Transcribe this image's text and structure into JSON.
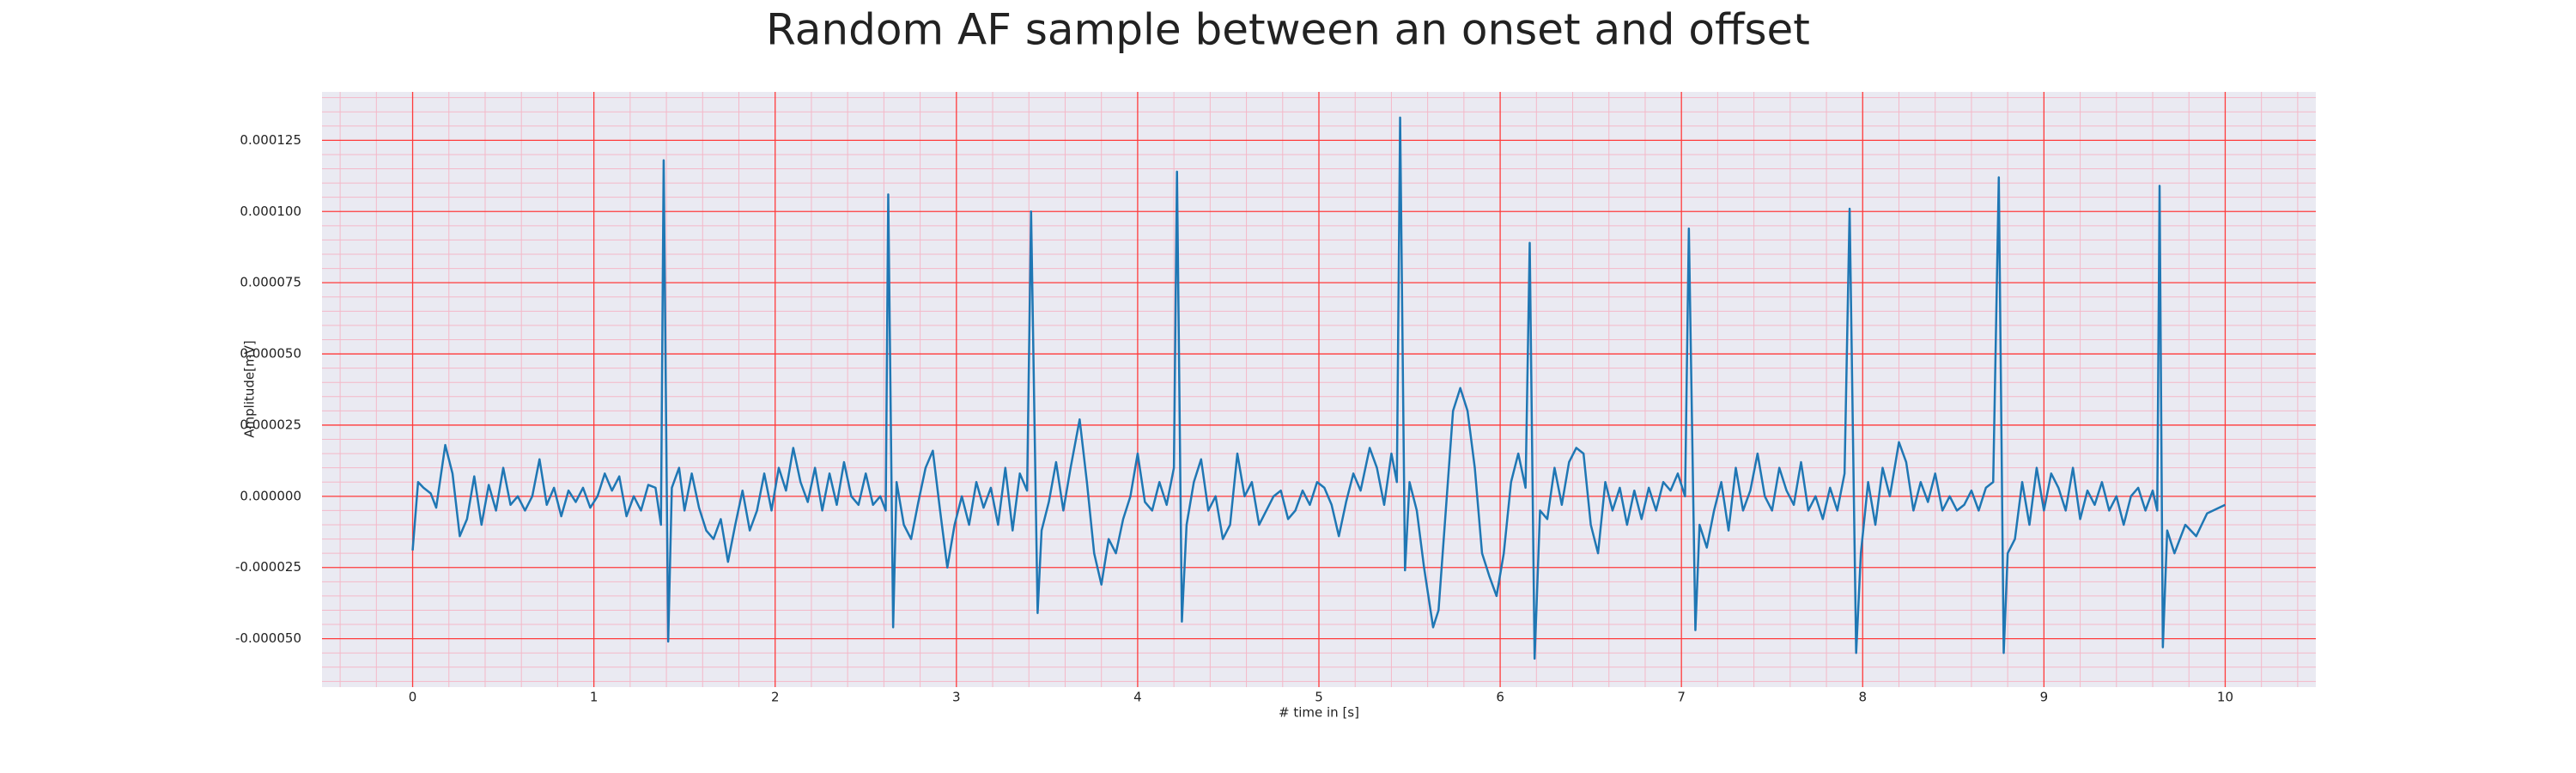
{
  "chart_data": {
    "type": "line",
    "title": "Random AF sample between an onset and offset",
    "xlabel": "# time in [s]",
    "ylabel": "Amplitude[mV]",
    "xlim": [
      -0.5,
      10.5
    ],
    "xticks": [
      0,
      1,
      2,
      3,
      4,
      5,
      6,
      7,
      8,
      9,
      10
    ],
    "ylim": [
      -6.7e-05,
      0.000142
    ],
    "yticks": [
      {
        "value": -5e-05,
        "label": "-0.000050"
      },
      {
        "value": -2.5e-05,
        "label": "-0.000025"
      },
      {
        "value": 0,
        "label": "0.000000"
      },
      {
        "value": 2.5e-05,
        "label": "0.000025"
      },
      {
        "value": 5e-05,
        "label": "0.000050"
      },
      {
        "value": 7.5e-05,
        "label": "0.000075"
      },
      {
        "value": 0.0001,
        "label": "0.000100"
      },
      {
        "value": 0.000125,
        "label": "0.000125"
      }
    ],
    "grid": true,
    "grid_color": "#ff3b3b",
    "minor_grid": true,
    "minor_divisions": 5,
    "minor_grid_color": "#f4b8c8",
    "background": "#eaeaf2",
    "x": [
      0,
      0.03,
      0.06,
      0.1,
      0.13,
      0.18,
      0.22,
      0.26,
      0.3,
      0.34,
      0.38,
      0.42,
      0.46,
      0.5,
      0.54,
      0.58,
      0.62,
      0.66,
      0.7,
      0.74,
      0.78,
      0.82,
      0.86,
      0.9,
      0.94,
      0.98,
      1.02,
      1.06,
      1.1,
      1.14,
      1.18,
      1.22,
      1.26,
      1.3,
      1.34,
      1.37,
      1.385,
      1.41,
      1.43,
      1.47,
      1.5,
      1.54,
      1.58,
      1.62,
      1.66,
      1.7,
      1.74,
      1.78,
      1.82,
      1.86,
      1.9,
      1.94,
      1.98,
      2.02,
      2.06,
      2.1,
      2.14,
      2.18,
      2.22,
      2.26,
      2.3,
      2.34,
      2.38,
      2.42,
      2.46,
      2.5,
      2.54,
      2.58,
      2.61,
      2.624,
      2.651,
      2.67,
      2.71,
      2.75,
      2.79,
      2.83,
      2.87,
      2.91,
      2.95,
      2.99,
      3.03,
      3.07,
      3.11,
      3.15,
      3.19,
      3.23,
      3.27,
      3.31,
      3.35,
      3.39,
      3.412,
      3.448,
      3.47,
      3.51,
      3.55,
      3.59,
      3.63,
      3.68,
      3.72,
      3.76,
      3.8,
      3.84,
      3.88,
      3.92,
      3.96,
      4.0,
      4.04,
      4.08,
      4.12,
      4.16,
      4.2,
      4.217,
      4.244,
      4.27,
      4.31,
      4.35,
      4.39,
      4.43,
      4.47,
      4.51,
      4.55,
      4.59,
      4.63,
      4.67,
      4.71,
      4.75,
      4.79,
      4.83,
      4.87,
      4.91,
      4.95,
      4.99,
      5.03,
      5.07,
      5.11,
      5.15,
      5.19,
      5.23,
      5.28,
      5.32,
      5.36,
      5.4,
      5.43,
      5.448,
      5.475,
      5.5,
      5.54,
      5.58,
      5.63,
      5.66,
      5.7,
      5.74,
      5.78,
      5.82,
      5.86,
      5.9,
      5.94,
      5.98,
      6.02,
      6.06,
      6.1,
      6.14,
      6.163,
      6.19,
      6.22,
      6.26,
      6.3,
      6.34,
      6.38,
      6.42,
      6.46,
      6.5,
      6.54,
      6.58,
      6.62,
      6.66,
      6.7,
      6.74,
      6.78,
      6.82,
      6.86,
      6.9,
      6.94,
      6.98,
      7.02,
      7.041,
      7.077,
      7.1,
      7.14,
      7.18,
      7.22,
      7.26,
      7.3,
      7.34,
      7.38,
      7.42,
      7.46,
      7.5,
      7.54,
      7.58,
      7.62,
      7.66,
      7.7,
      7.74,
      7.78,
      7.82,
      7.86,
      7.9,
      7.928,
      7.964,
      7.99,
      8.03,
      8.07,
      8.11,
      8.15,
      8.2,
      8.24,
      8.28,
      8.32,
      8.36,
      8.4,
      8.44,
      8.48,
      8.52,
      8.56,
      8.6,
      8.64,
      8.68,
      8.72,
      8.751,
      8.778,
      8.8,
      8.84,
      8.88,
      8.92,
      8.96,
      9.0,
      9.04,
      9.08,
      9.12,
      9.16,
      9.2,
      9.24,
      9.28,
      9.32,
      9.36,
      9.4,
      9.44,
      9.48,
      9.52,
      9.56,
      9.6,
      9.625,
      9.638,
      9.656,
      9.68,
      9.72,
      9.78,
      9.84,
      9.9,
      10
    ],
    "series": [
      {
        "color": "#1f77b4",
        "values": [
          -1.9e-05,
          5e-06,
          3e-06,
          1e-06,
          -4e-06,
          1.8e-05,
          8e-06,
          -1.4e-05,
          -8e-06,
          7e-06,
          -1e-05,
          4e-06,
          -5e-06,
          1e-05,
          -3e-06,
          0,
          -5e-06,
          0,
          1.3e-05,
          -3e-06,
          3e-06,
          -7e-06,
          2e-06,
          -2e-06,
          3e-06,
          -4e-06,
          0,
          8e-06,
          2e-06,
          7e-06,
          -7e-06,
          0,
          -5e-06,
          4e-06,
          3e-06,
          -1e-05,
          0.000118,
          -5.1e-05,
          3e-06,
          1e-05,
          -5e-06,
          8e-06,
          -4e-06,
          -1.2e-05,
          -1.5e-05,
          -8e-06,
          -2.3e-05,
          -1e-05,
          2e-06,
          -1.2e-05,
          -5e-06,
          8e-06,
          -5e-06,
          1e-05,
          2e-06,
          1.7e-05,
          5e-06,
          -2e-06,
          1e-05,
          -5e-06,
          8e-06,
          -3e-06,
          1.2e-05,
          0,
          -3e-06,
          8e-06,
          -3e-06,
          0,
          -5e-06,
          0.000106,
          -4.6e-05,
          5e-06,
          -1e-05,
          -1.5e-05,
          -2e-06,
          1e-05,
          1.6e-05,
          -5e-06,
          -2.5e-05,
          -1e-05,
          0,
          -1e-05,
          5e-06,
          -4e-06,
          3e-06,
          -1e-05,
          1e-05,
          -1.2e-05,
          8e-06,
          2e-06,
          0.0001,
          -4.1e-05,
          -1.2e-05,
          -2e-06,
          1.2e-05,
          -5e-06,
          1e-05,
          2.7e-05,
          5e-06,
          -2e-05,
          -3.1e-05,
          -1.5e-05,
          -2e-05,
          -8e-06,
          0,
          1.5e-05,
          -2e-06,
          -5e-06,
          5e-06,
          -3e-06,
          1e-05,
          0.000114,
          -4.4e-05,
          -1e-05,
          5e-06,
          1.3e-05,
          -5e-06,
          0,
          -1.5e-05,
          -1e-05,
          1.5e-05,
          0,
          5e-06,
          -1e-05,
          -5e-06,
          0,
          2e-06,
          -8e-06,
          -5e-06,
          2e-06,
          -3e-06,
          5e-06,
          3e-06,
          -3e-06,
          -1.4e-05,
          -2e-06,
          8e-06,
          2e-06,
          1.7e-05,
          1e-05,
          -3e-06,
          1.5e-05,
          5e-06,
          0.000133,
          -2.6e-05,
          5e-06,
          -5e-06,
          -2.5e-05,
          -4.6e-05,
          -4e-05,
          -5e-06,
          3e-05,
          3.8e-05,
          3e-05,
          1e-05,
          -2e-05,
          -2.8e-05,
          -3.5e-05,
          -2e-05,
          5e-06,
          1.5e-05,
          3e-06,
          8.9e-05,
          -5.7e-05,
          -5e-06,
          -8e-06,
          1e-05,
          -3e-06,
          1.2e-05,
          1.7e-05,
          1.5e-05,
          -1e-05,
          -2e-05,
          5e-06,
          -5e-06,
          3e-06,
          -1e-05,
          2e-06,
          -8e-06,
          3e-06,
          -5e-06,
          5e-06,
          2e-06,
          8e-06,
          0,
          9.4e-05,
          -4.7e-05,
          -1e-05,
          -1.8e-05,
          -5e-06,
          5e-06,
          -1.2e-05,
          1e-05,
          -5e-06,
          2e-06,
          1.5e-05,
          0,
          -5e-06,
          1e-05,
          2e-06,
          -3e-06,
          1.2e-05,
          -5e-06,
          0,
          -8e-06,
          3e-06,
          -5e-06,
          8e-06,
          0.000101,
          -5.5e-05,
          -2e-05,
          5e-06,
          -1e-05,
          1e-05,
          0,
          1.9e-05,
          1.2e-05,
          -5e-06,
          5e-06,
          -2e-06,
          8e-06,
          -5e-06,
          0,
          -5e-06,
          -3e-06,
          2e-06,
          -5e-06,
          3e-06,
          5e-06,
          0.000112,
          -5.5e-05,
          -2e-05,
          -1.5e-05,
          5e-06,
          -1e-05,
          1e-05,
          -5e-06,
          8e-06,
          3e-06,
          -5e-06,
          1e-05,
          -8e-06,
          2e-06,
          -3e-06,
          5e-06,
          -5e-06,
          0,
          -1e-05,
          0,
          3e-06,
          -5e-06,
          2e-06,
          -5e-06,
          0.000109,
          -5.3e-05,
          -1.2e-05,
          -2e-05,
          -1e-05,
          -1.4e-05,
          -6e-06,
          -3e-06
        ]
      }
    ]
  }
}
